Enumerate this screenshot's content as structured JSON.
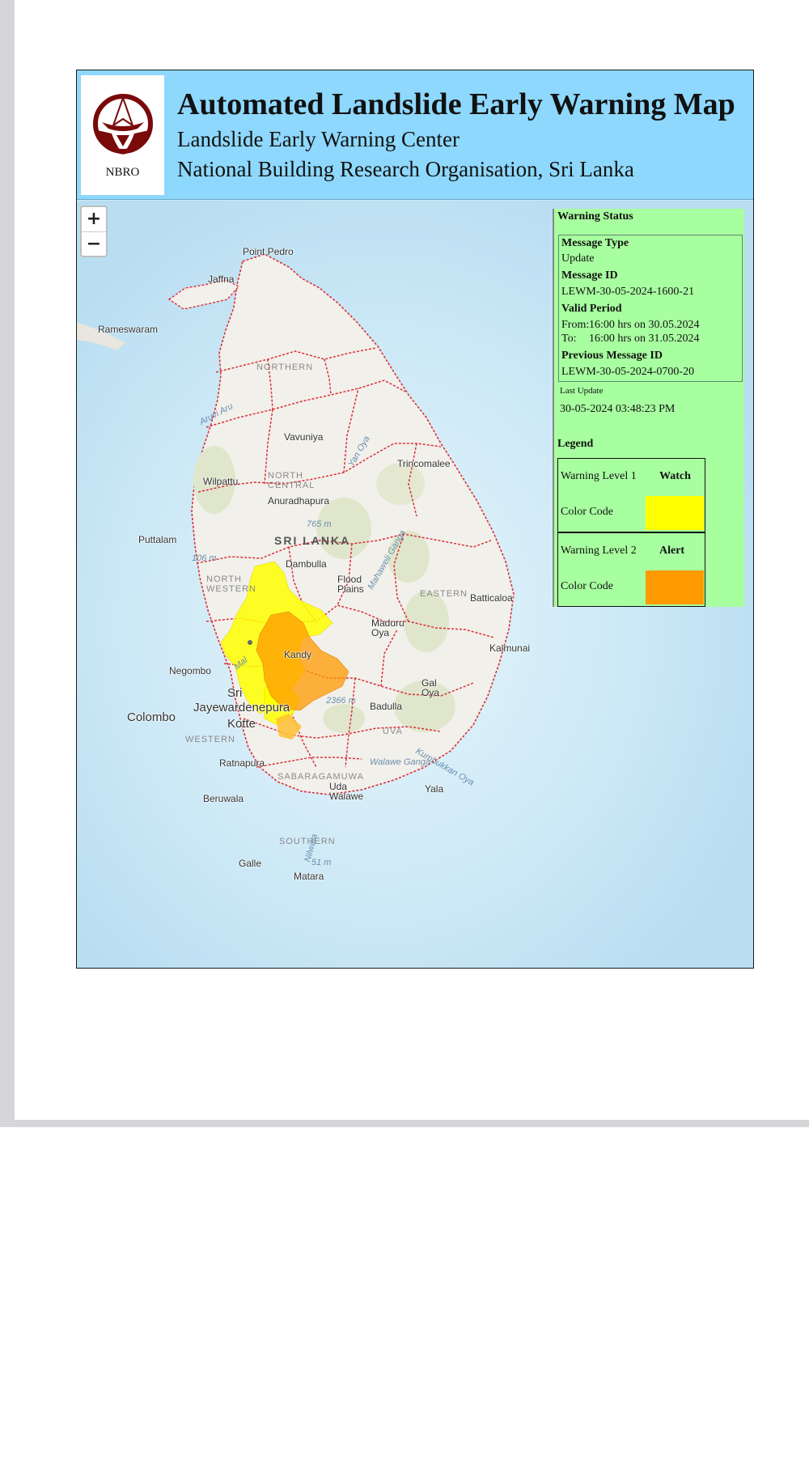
{
  "header": {
    "logo_text": "NBRO",
    "title": "Automated Landslide Early Warning Map",
    "subtitle1": "Landslide Early Warning Center",
    "subtitle2": "National Building Research Organisation, Sri Lanka"
  },
  "map": {
    "zoom_in": "+",
    "zoom_out": "−",
    "country_label": "SRI LANKA",
    "places": {
      "point_pedro": "Point Pedro",
      "jaffna": "Jaffna",
      "rameswaram": "Rameswaram",
      "vavuniya": "Vavuniya",
      "trincomalee": "Trincomalee",
      "wilpattu": "Wilpattu",
      "anuradhapura": "Anuradhapura",
      "puttalam": "Puttalam",
      "dambulla": "Dambulla",
      "batticaloa": "Batticaloa",
      "kalmunai": "Kalmunai",
      "negombo": "Negombo",
      "kandy": "Kandy",
      "colombo": "Colombo",
      "jayewardenepura": "Jayewardenepura",
      "kotte": "Kotte",
      "sri": "Sri",
      "badulla": "Badulla",
      "ratnapura": "Ratnapura",
      "beruwala": "Beruwala",
      "galle": "Galle",
      "matara": "Matara",
      "uda_walawe": "Uda\nWalawe",
      "yala": "Yala",
      "flood_plains": "Flood\nPlains",
      "maduru_oya": "Maduru\nOya",
      "gal_oya": "Gal\nOya"
    },
    "regions": {
      "northern": "NORTHERN",
      "north_central": "NORTH\nCENTRAL",
      "north_western": "NORTH\nWESTERN",
      "eastern": "EASTERN",
      "western": "WESTERN",
      "sabaragamuwa": "SABARAGAMUWA",
      "southern": "SOUTHERN",
      "uva": "UVA"
    },
    "elevations": {
      "e765": "765 m",
      "e106": "106 m",
      "e2366": "2366 m",
      "e51": "51 m"
    },
    "waters": {
      "aruvi_aru": "Aruvi Aru",
      "yan_oya": "Yan Oya",
      "mahaweli": "Mahaweli Ganga",
      "kumbukkan": "Kumbukkan Oya",
      "walawe": "Walawe Ganga",
      "mal": "Mal",
      "nilwala": "Nilwala"
    },
    "colors": {
      "watch": "#ffff00",
      "alert": "#ff9a00",
      "district_border": "#d9303a"
    }
  },
  "status": {
    "title": "Warning Status",
    "message_type_label": "Message Type",
    "message_type_value": "Update",
    "message_id_label": "Message ID",
    "message_id_value": "LEWM-30-05-2024-1600-21",
    "valid_period_label": "Valid Period",
    "from_label": "From:",
    "from_value": "16:00 hrs on 30.05.2024",
    "to_label": "To:",
    "to_value": "16:00 hrs on 31.05.2024",
    "previous_id_label": "Previous Message ID",
    "previous_id_value": "LEWM-30-05-2024-0700-20",
    "last_update_label": "Last Update",
    "last_update_value": "30-05-2024 03:48:23 PM"
  },
  "legend": {
    "title": "Legend",
    "items": [
      {
        "level": "Warning Level 1",
        "name": "Watch",
        "color_label": "Color Code",
        "color": "#ffff00"
      },
      {
        "level": "Warning Level 2",
        "name": "Alert",
        "color_label": "Color Code",
        "color": "#ff9a00"
      }
    ]
  }
}
